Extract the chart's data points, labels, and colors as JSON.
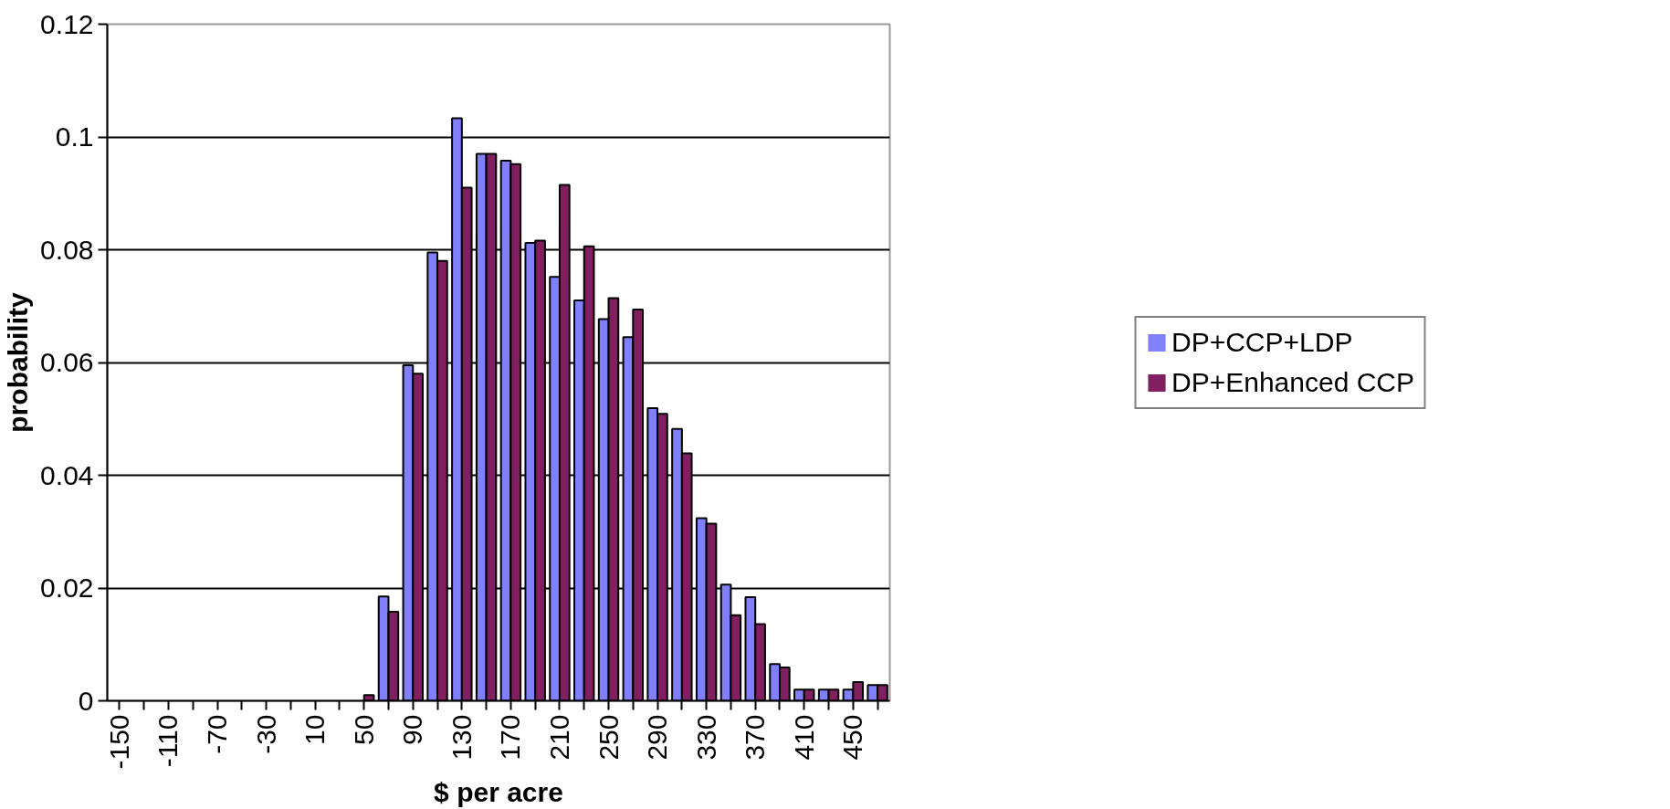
{
  "chart_data": {
    "type": "bar",
    "xlabel": "$ per acre",
    "ylabel": "probability",
    "categories": [
      "-150",
      null,
      "-110",
      null,
      "-70",
      null,
      "-30",
      null,
      "10",
      null,
      "50",
      null,
      "90",
      null,
      "130",
      null,
      "170",
      null,
      "210",
      null,
      "250",
      null,
      "290",
      null,
      "330",
      null,
      "370",
      null,
      "410",
      null,
      "450",
      null
    ],
    "series": [
      {
        "name": "DP+CCP+LDP",
        "color": "#8080ff",
        "values": [
          0,
          0,
          0,
          0,
          0,
          0,
          0,
          0,
          0,
          0,
          0,
          0.0185,
          0.0595,
          0.0795,
          0.1033,
          0.097,
          0.0958,
          0.0812,
          0.0752,
          0.071,
          0.0677,
          0.0645,
          0.0519,
          0.0482,
          0.0324,
          0.0206,
          0.0184,
          0.0065,
          0.002,
          0.002,
          0.002,
          0.0028
        ]
      },
      {
        "name": "DP+Enhanced CCP",
        "color": "#802060",
        "values": [
          0,
          0,
          0,
          0,
          0,
          0,
          0,
          0,
          0,
          0,
          0.001,
          0.0158,
          0.058,
          0.078,
          0.091,
          0.097,
          0.0952,
          0.0816,
          0.0915,
          0.0806,
          0.0714,
          0.0694,
          0.0509,
          0.0439,
          0.0314,
          0.0152,
          0.0136,
          0.0059,
          0.002,
          0.002,
          0.0033,
          0.0028
        ]
      }
    ],
    "ylim": [
      0,
      0.12
    ],
    "yticks": [
      0,
      0.02,
      0.04,
      0.06,
      0.08,
      0.1,
      0.12
    ],
    "grid": "y",
    "legend": "right"
  }
}
